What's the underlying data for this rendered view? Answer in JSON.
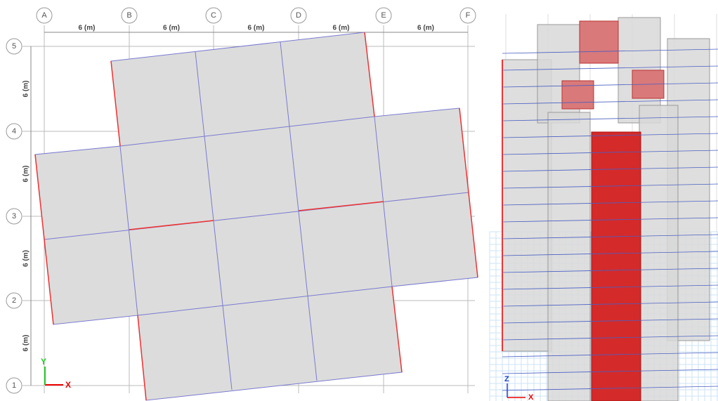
{
  "grid": {
    "columns": [
      "A",
      "B",
      "C",
      "D",
      "E",
      "F"
    ],
    "rows": [
      "5",
      "4",
      "3",
      "2",
      "1"
    ]
  },
  "dimensions": {
    "horizontal": [
      "6 (m)",
      "6 (m)",
      "6 (m)",
      "6 (m)",
      "6 (m)"
    ],
    "vertical": [
      "6 (m)",
      "6 (m)",
      "6 (m)",
      "6 (m)"
    ]
  },
  "axes": {
    "plan_x": "X",
    "plan_y": "Y",
    "view_z": "Z",
    "view_x": "X"
  }
}
